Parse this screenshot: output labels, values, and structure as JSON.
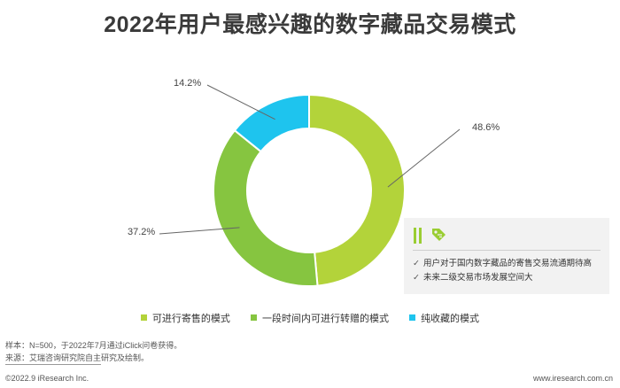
{
  "chart_data": {
    "type": "pie",
    "subtype": "donut",
    "title": "2022年用户最感兴趣的数字藏品交易模式",
    "categories": [
      "可进行寄售的模式",
      "一段时间内可进行转赠的模式",
      "纯收藏的模式"
    ],
    "values": [
      48.6,
      37.2,
      14.2
    ],
    "labels": [
      "48.6%",
      "37.2%",
      "14.2%"
    ],
    "colors": [
      "#b3d33a",
      "#86c540",
      "#1ec4ee"
    ],
    "legend_position": "bottom"
  },
  "note": {
    "items": [
      "用户对于国内数字藏品的寄售交易流通期待高",
      "未来二级交易市场发展空间大"
    ],
    "check_glyph": "✓",
    "icons": [
      "bars-icon",
      "tag-icon"
    ],
    "accent": "#9acd32"
  },
  "footer": {
    "sample": "样本：N=500，于2022年7月通过iClick问卷获得。",
    "source": "来源：艾瑞咨询研究院自主研究及绘制。",
    "copyright": "©2022.9 iResearch Inc.",
    "website": "www.iresearch.com.cn"
  }
}
